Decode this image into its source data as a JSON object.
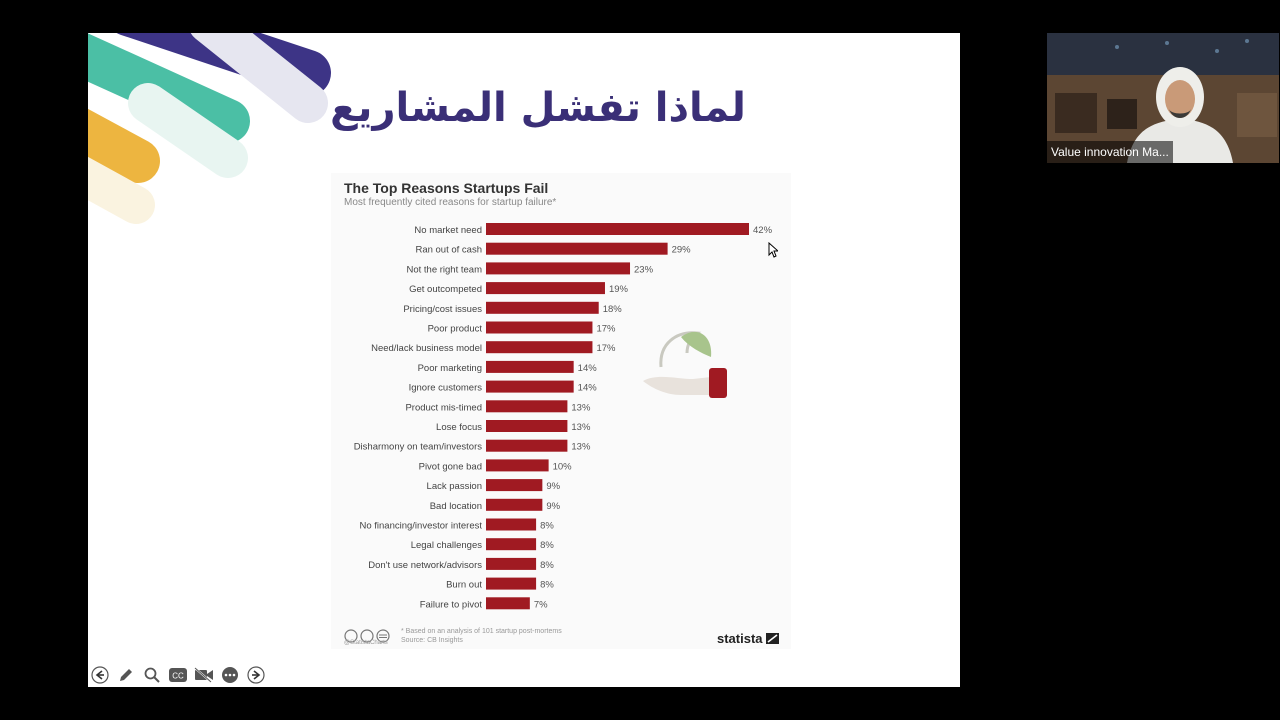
{
  "slide": {
    "title": "لماذا تفشل المشاريع"
  },
  "chart_data": {
    "type": "bar",
    "orientation": "horizontal",
    "title": "The Top Reasons Startups Fail",
    "subtitle": "Most frequently cited reasons for startup failure*",
    "categories": [
      "No market need",
      "Ran out of cash",
      "Not the right team",
      "Get outcompeted",
      "Pricing/cost issues",
      "Poor product",
      "Need/lack business model",
      "Poor marketing",
      "Ignore customers",
      "Product mis-timed",
      "Lose focus",
      "Disharmony on team/investors",
      "Pivot gone bad",
      "Lack passion",
      "Bad location",
      "No financing/investor interest",
      "Legal challenges",
      "Don't use network/advisors",
      "Burn out",
      "Failure to pivot"
    ],
    "values": [
      42,
      29,
      23,
      19,
      18,
      17,
      17,
      14,
      14,
      13,
      13,
      13,
      10,
      9,
      9,
      8,
      8,
      8,
      8,
      7
    ],
    "value_suffix": "%",
    "bar_color": "#a01a22",
    "xlim": [
      0,
      50
    ],
    "grid": false,
    "footnote": "* Based on an analysis of 101 startup post-mortems",
    "source": "Source: CB Insights",
    "handle": "@StatistaCharts",
    "brand": "statista"
  },
  "toolbar": {
    "buttons": [
      "back-arrow-icon",
      "pen-icon",
      "zoom-icon",
      "captions-icon",
      "video-off-icon",
      "more-icon",
      "forward-arrow-icon"
    ],
    "captions_label": "CC"
  },
  "video": {
    "participant_name": "Value innovation Ma..."
  },
  "colors": {
    "title": "#3a2f77",
    "deco_purple": "#3d3486",
    "deco_teal": "#4bbfa5",
    "deco_yellow": "#edb540"
  }
}
